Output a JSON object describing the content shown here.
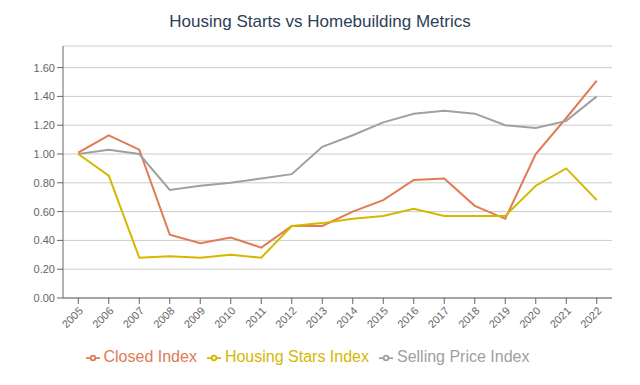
{
  "chart_data": {
    "type": "line",
    "title": "Housing Starts vs Homebuilding Metrics",
    "x": [
      2005,
      2006,
      2007,
      2008,
      2009,
      2010,
      2011,
      2012,
      2013,
      2014,
      2015,
      2016,
      2017,
      2018,
      2019,
      2020,
      2021,
      2022
    ],
    "series": [
      {
        "name": "Closed Index",
        "color": "#E07B54",
        "values": [
          1.01,
          1.13,
          1.03,
          0.44,
          0.38,
          0.42,
          0.35,
          0.5,
          0.5,
          0.6,
          0.68,
          0.82,
          0.83,
          0.64,
          0.55,
          1.0,
          1.25,
          1.51
        ]
      },
      {
        "name": "Selling Price Index",
        "color": "#A0A0A0",
        "values": [
          1.0,
          1.03,
          1.0,
          0.75,
          0.78,
          0.8,
          0.83,
          0.86,
          1.05,
          1.13,
          1.22,
          1.28,
          1.3,
          1.28,
          1.2,
          1.18,
          1.23,
          1.4
        ]
      },
      {
        "name": "Housing Stars Index",
        "color": "#D4B800",
        "values": [
          1.0,
          0.85,
          0.28,
          0.29,
          0.28,
          0.3,
          0.28,
          0.5,
          0.52,
          0.55,
          0.57,
          0.62,
          0.57,
          0.57,
          0.57,
          0.78,
          0.9,
          0.68
        ]
      }
    ],
    "xlim": [
      2004.5,
      2022.5
    ],
    "xticks": [
      2005,
      2006,
      2007,
      2008,
      2009,
      2010,
      2011,
      2012,
      2013,
      2014,
      2015,
      2016,
      2017,
      2018,
      2019,
      2020,
      2021,
      2022
    ],
    "ylim": [
      0.0,
      1.75
    ],
    "yticks": [
      {
        "value": 0.0,
        "label": "0.00"
      },
      {
        "value": 0.2,
        "label": "0.20"
      },
      {
        "value": 0.4,
        "label": "0.40"
      },
      {
        "value": 0.6,
        "label": "0.60"
      },
      {
        "value": 0.8,
        "label": "0.80"
      },
      {
        "value": 1.0,
        "label": "1.00"
      },
      {
        "value": 1.2,
        "label": "1.20"
      },
      {
        "value": 1.4,
        "label": "1.40"
      },
      {
        "value": 1.6,
        "label": "1.60"
      }
    ],
    "grid": "y",
    "legend": "bottom"
  }
}
